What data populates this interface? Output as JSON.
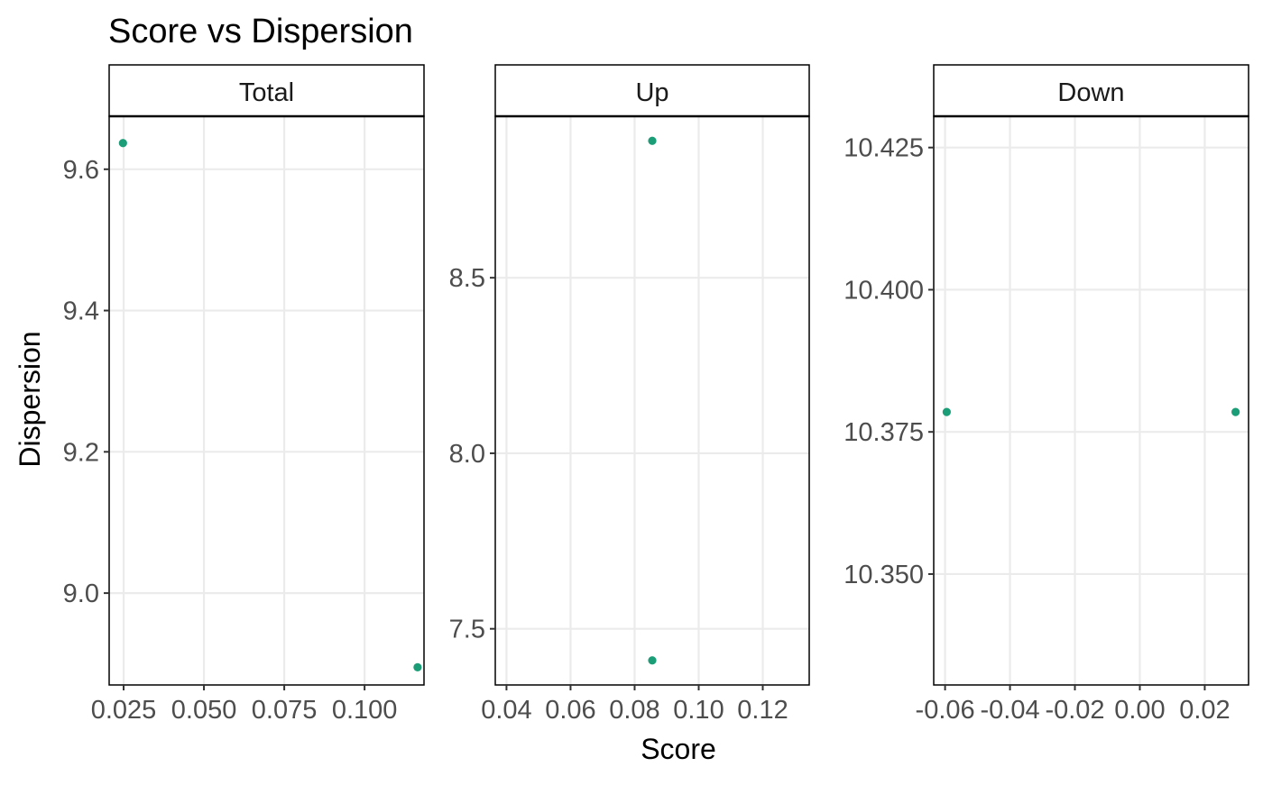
{
  "chart_data": {
    "type": "scatter",
    "title": "Score vs Dispersion",
    "xlabel": "Score",
    "ylabel": "Dispersion",
    "point_color": "#1b9e77",
    "grid": true,
    "facets": [
      {
        "name": "Total",
        "xlim": [
          0.0205,
          0.1185
        ],
        "ylim": [
          8.87,
          9.675
        ],
        "x_ticks": [
          0.025,
          0.05,
          0.075,
          0.1
        ],
        "x_tick_labels": [
          "0.025",
          "0.050",
          "0.075",
          "0.100"
        ],
        "y_ticks": [
          9.0,
          9.2,
          9.4,
          9.6
        ],
        "y_tick_labels": [
          "9.0",
          "9.2",
          "9.4",
          "9.6"
        ],
        "points": [
          {
            "x": 0.0248,
            "y": 9.637
          },
          {
            "x": 0.1165,
            "y": 8.895
          }
        ]
      },
      {
        "name": "Up",
        "xlim": [
          0.0365,
          0.1345
        ],
        "ylim": [
          7.34,
          8.96
        ],
        "x_ticks": [
          0.04,
          0.06,
          0.08,
          0.1,
          0.12
        ],
        "x_tick_labels": [
          "0.04",
          "0.06",
          "0.08",
          "0.10",
          "0.12"
        ],
        "y_ticks": [
          7.5,
          8.0,
          8.5
        ],
        "y_tick_labels": [
          "7.5",
          "8.0",
          "8.5"
        ],
        "points": [
          {
            "x": 0.0855,
            "y": 8.89
          },
          {
            "x": 0.0855,
            "y": 7.41
          }
        ]
      },
      {
        "name": "Down",
        "xlim": [
          -0.0635,
          0.0335
        ],
        "ylim": [
          10.3305,
          10.4305
        ],
        "x_ticks": [
          -0.06,
          -0.04,
          -0.02,
          0.0,
          0.02
        ],
        "x_tick_labels": [
          "-0.06",
          "-0.04",
          "-0.02",
          "0.00",
          "0.02"
        ],
        "y_ticks": [
          10.35,
          10.375,
          10.4,
          10.425
        ],
        "y_tick_labels": [
          "10.350",
          "10.375",
          "10.400",
          "10.425"
        ],
        "points": [
          {
            "x": -0.0595,
            "y": 10.3785
          },
          {
            "x": 0.0295,
            "y": 10.3785
          }
        ]
      }
    ]
  }
}
